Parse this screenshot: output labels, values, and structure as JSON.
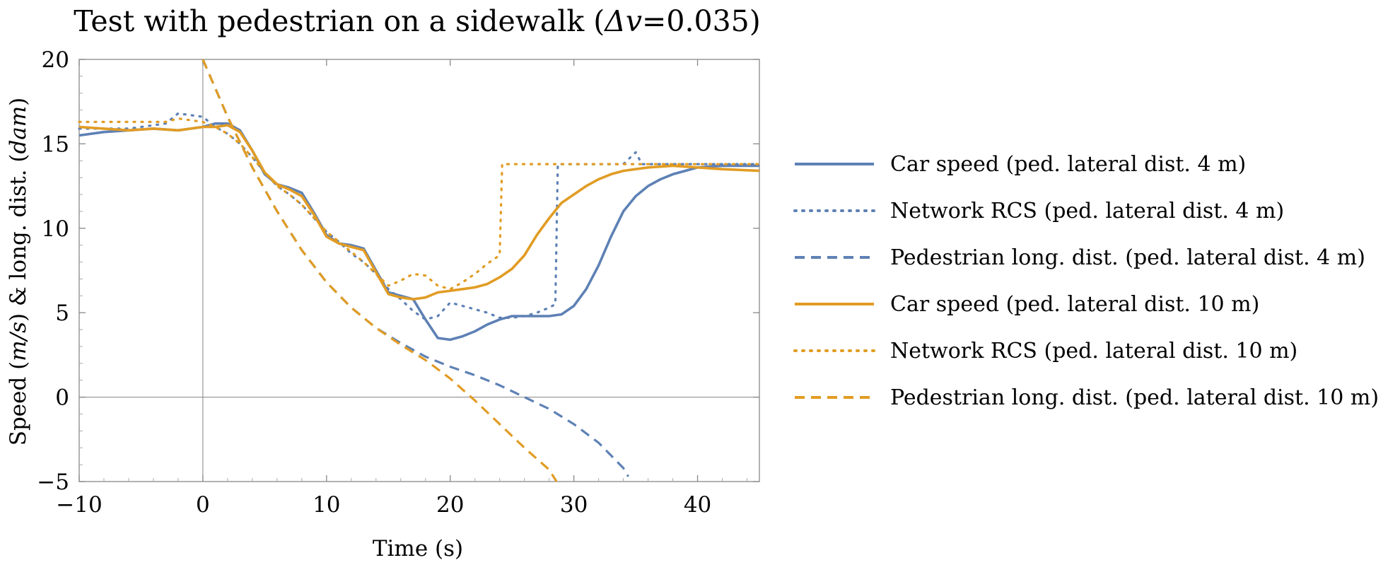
{
  "chart_data": {
    "type": "line",
    "title": "Test with pedestrian on a sidewalk (",
    "title_math_symbol": "Δv",
    "title_suffix": "=0.035)",
    "xlabel": "Time (s)",
    "ylabel_parts": [
      "Speed (",
      "m/s",
      ") & long. dist. (",
      "dam",
      ")"
    ],
    "xlim": [
      -10,
      45
    ],
    "ylim": [
      -5,
      20
    ],
    "x_ticks": [
      {
        "value": -10,
        "label": "−10"
      },
      {
        "value": 0,
        "label": "0"
      },
      {
        "value": 10,
        "label": "10"
      },
      {
        "value": 20,
        "label": "20"
      },
      {
        "value": 30,
        "label": "30"
      },
      {
        "value": 40,
        "label": "40"
      }
    ],
    "y_ticks": [
      {
        "value": -5,
        "label": "−5"
      },
      {
        "value": 0,
        "label": "0"
      },
      {
        "value": 5,
        "label": "5"
      },
      {
        "value": 10,
        "label": "10"
      },
      {
        "value": 15,
        "label": "15"
      },
      {
        "value": 20,
        "label": "20"
      }
    ],
    "grid": false,
    "legend_position": "right",
    "colors": {
      "blue": "#5e81b5",
      "orange": "#e19c24"
    },
    "series": [
      {
        "name": "Car speed (ped. lateral dist. 4 m)",
        "color": "#5e81b5",
        "style": "solid",
        "points": [
          [
            -10,
            15.5
          ],
          [
            -8,
            15.7
          ],
          [
            -6,
            15.8
          ],
          [
            -4,
            15.9
          ],
          [
            -2,
            15.8
          ],
          [
            0,
            16.0
          ],
          [
            1,
            16.2
          ],
          [
            2,
            16.2
          ],
          [
            3,
            15.8
          ],
          [
            4,
            14.6
          ],
          [
            5,
            13.2
          ],
          [
            6,
            12.6
          ],
          [
            7,
            12.4
          ],
          [
            8,
            12.1
          ],
          [
            9,
            10.9
          ],
          [
            10,
            9.6
          ],
          [
            11,
            9.1
          ],
          [
            12,
            9.0
          ],
          [
            13,
            8.8
          ],
          [
            14,
            7.5
          ],
          [
            15,
            6.2
          ],
          [
            16,
            6.0
          ],
          [
            17,
            5.8
          ],
          [
            18,
            4.6
          ],
          [
            19,
            3.5
          ],
          [
            20,
            3.4
          ],
          [
            21,
            3.6
          ],
          [
            22,
            3.9
          ],
          [
            23,
            4.3
          ],
          [
            24,
            4.6
          ],
          [
            25,
            4.8
          ],
          [
            26,
            4.8
          ],
          [
            27,
            4.8
          ],
          [
            28,
            4.8
          ],
          [
            29,
            4.9
          ],
          [
            30,
            5.4
          ],
          [
            31,
            6.4
          ],
          [
            32,
            7.8
          ],
          [
            33,
            9.5
          ],
          [
            34,
            11.0
          ],
          [
            35,
            11.9
          ],
          [
            36,
            12.5
          ],
          [
            37,
            12.9
          ],
          [
            38,
            13.2
          ],
          [
            39,
            13.4
          ],
          [
            40,
            13.6
          ],
          [
            42,
            13.7
          ],
          [
            45,
            13.7
          ]
        ]
      },
      {
        "name": "Network RCS (ped. lateral dist. 4 m)",
        "color": "#5e81b5",
        "style": "dotted",
        "points": [
          [
            -10,
            15.9
          ],
          [
            -6,
            15.9
          ],
          [
            -3,
            16.2
          ],
          [
            -2,
            16.8
          ],
          [
            -1,
            16.7
          ],
          [
            0,
            16.6
          ],
          [
            1,
            16.0
          ],
          [
            2,
            15.6
          ],
          [
            3,
            15.0
          ],
          [
            4,
            14.2
          ],
          [
            5,
            13.3
          ],
          [
            6,
            12.5
          ],
          [
            7,
            12.0
          ],
          [
            8,
            11.4
          ],
          [
            9,
            10.6
          ],
          [
            10,
            9.8
          ],
          [
            11,
            9.2
          ],
          [
            12,
            8.5
          ],
          [
            13,
            8.0
          ],
          [
            14,
            7.3
          ],
          [
            15,
            6.4
          ],
          [
            16,
            5.8
          ],
          [
            17,
            5.1
          ],
          [
            18,
            4.6
          ],
          [
            19,
            4.8
          ],
          [
            20,
            5.6
          ],
          [
            21,
            5.4
          ],
          [
            22,
            5.2
          ],
          [
            23,
            5.0
          ],
          [
            24,
            4.7
          ],
          [
            25,
            4.7
          ],
          [
            26,
            4.8
          ],
          [
            27,
            5.0
          ],
          [
            28,
            5.3
          ],
          [
            28.5,
            5.5
          ],
          [
            28.7,
            13.8
          ],
          [
            30,
            13.8
          ],
          [
            34,
            13.8
          ],
          [
            35,
            14.5
          ],
          [
            35.5,
            13.8
          ],
          [
            45,
            13.8
          ]
        ]
      },
      {
        "name": "Pedestrian long. dist. (ped. lateral dist. 4 m)",
        "color": "#5e81b5",
        "style": "dashed",
        "points": [
          [
            0,
            20.0
          ],
          [
            2,
            16.6
          ],
          [
            4,
            13.6
          ],
          [
            6,
            11.0
          ],
          [
            8,
            8.7
          ],
          [
            10,
            6.8
          ],
          [
            12,
            5.3
          ],
          [
            14,
            4.1
          ],
          [
            16,
            3.2
          ],
          [
            18,
            2.4
          ],
          [
            20,
            1.8
          ],
          [
            22,
            1.3
          ],
          [
            24,
            0.7
          ],
          [
            26,
            0.0
          ],
          [
            28,
            -0.7
          ],
          [
            30,
            -1.6
          ],
          [
            32,
            -2.7
          ],
          [
            34,
            -4.2
          ],
          [
            34.4,
            -4.7
          ]
        ]
      },
      {
        "name": "Car speed (ped. lateral dist. 10 m)",
        "color": "#e19c24",
        "style": "solid",
        "points": [
          [
            -10,
            16.0
          ],
          [
            -8,
            15.9
          ],
          [
            -6,
            15.8
          ],
          [
            -4,
            15.9
          ],
          [
            -2,
            15.8
          ],
          [
            0,
            16.0
          ],
          [
            1,
            16.0
          ],
          [
            2,
            16.1
          ],
          [
            3,
            15.7
          ],
          [
            4,
            14.6
          ],
          [
            5,
            13.3
          ],
          [
            6,
            12.6
          ],
          [
            7,
            12.3
          ],
          [
            8,
            11.9
          ],
          [
            9,
            10.8
          ],
          [
            10,
            9.5
          ],
          [
            11,
            9.1
          ],
          [
            12,
            8.9
          ],
          [
            13,
            8.7
          ],
          [
            14,
            7.4
          ],
          [
            15,
            6.1
          ],
          [
            16,
            5.9
          ],
          [
            17,
            5.8
          ],
          [
            18,
            5.9
          ],
          [
            19,
            6.2
          ],
          [
            20,
            6.3
          ],
          [
            21,
            6.4
          ],
          [
            22,
            6.5
          ],
          [
            23,
            6.7
          ],
          [
            24,
            7.1
          ],
          [
            25,
            7.6
          ],
          [
            26,
            8.4
          ],
          [
            27,
            9.6
          ],
          [
            28,
            10.6
          ],
          [
            29,
            11.5
          ],
          [
            30,
            12.0
          ],
          [
            31,
            12.5
          ],
          [
            32,
            12.9
          ],
          [
            33,
            13.2
          ],
          [
            34,
            13.4
          ],
          [
            36,
            13.6
          ],
          [
            38,
            13.7
          ],
          [
            40,
            13.6
          ],
          [
            42,
            13.5
          ],
          [
            45,
            13.4
          ]
        ]
      },
      {
        "name": "Network RCS (ped. lateral dist. 10 m)",
        "color": "#e19c24",
        "style": "dotted",
        "points": [
          [
            -10,
            16.3
          ],
          [
            -6,
            16.3
          ],
          [
            -3,
            16.3
          ],
          [
            -2,
            16.5
          ],
          [
            0,
            16.3
          ],
          [
            1,
            16.0
          ],
          [
            2,
            15.6
          ],
          [
            3,
            15.0
          ],
          [
            4,
            14.2
          ],
          [
            5,
            13.3
          ],
          [
            6,
            12.5
          ],
          [
            7,
            12.0
          ],
          [
            8,
            11.4
          ],
          [
            9,
            10.6
          ],
          [
            10,
            9.8
          ],
          [
            11,
            9.2
          ],
          [
            12,
            8.6
          ],
          [
            13,
            8.0
          ],
          [
            14,
            7.3
          ],
          [
            15,
            6.6
          ],
          [
            16,
            6.9
          ],
          [
            17,
            7.3
          ],
          [
            18,
            7.2
          ],
          [
            19,
            6.6
          ],
          [
            20,
            6.4
          ],
          [
            21,
            6.8
          ],
          [
            22,
            7.3
          ],
          [
            23,
            7.9
          ],
          [
            24,
            8.4
          ],
          [
            24.2,
            13.8
          ],
          [
            30,
            13.8
          ],
          [
            45,
            13.8
          ]
        ]
      },
      {
        "name": "Pedestrian long. dist. (ped. lateral dist. 10 m)",
        "color": "#e19c24",
        "style": "dashed",
        "points": [
          [
            0,
            20.0
          ],
          [
            2,
            16.6
          ],
          [
            4,
            13.6
          ],
          [
            6,
            11.0
          ],
          [
            8,
            8.7
          ],
          [
            10,
            6.8
          ],
          [
            12,
            5.3
          ],
          [
            14,
            4.1
          ],
          [
            16,
            3.1
          ],
          [
            18,
            2.2
          ],
          [
            20,
            1.1
          ],
          [
            22,
            -0.2
          ],
          [
            24,
            -1.6
          ],
          [
            26,
            -3.0
          ],
          [
            28,
            -4.3
          ],
          [
            28.6,
            -5.0
          ]
        ]
      }
    ]
  }
}
